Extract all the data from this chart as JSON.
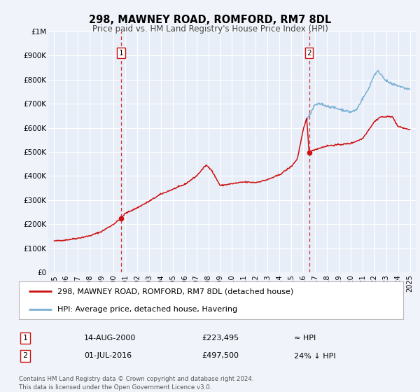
{
  "title": "298, MAWNEY ROAD, ROMFORD, RM7 8DL",
  "subtitle": "Price paid vs. HM Land Registry's House Price Index (HPI)",
  "bg_color": "#f0f4fa",
  "plot_bg_color": "#e8eef8",
  "grid_color": "#ffffff",
  "hpi_color": "#7ab0d4",
  "price_color": "#cc1111",
  "sale1_date_num": 2000.62,
  "sale1_price": 223495,
  "sale2_date_num": 2016.5,
  "sale2_price": 497500,
  "vline_color": "#cc1111",
  "ylim_max": 1000000,
  "ylim_min": 0,
  "xlim_min": 1994.5,
  "xlim_max": 2025.5,
  "ytick_labels": [
    "£0",
    "£100K",
    "£200K",
    "£300K",
    "£400K",
    "£500K",
    "£600K",
    "£700K",
    "£800K",
    "£900K",
    "£1M"
  ],
  "ytick_values": [
    0,
    100000,
    200000,
    300000,
    400000,
    500000,
    600000,
    700000,
    800000,
    900000,
    1000000
  ],
  "xtick_years": [
    1995,
    1996,
    1997,
    1998,
    1999,
    2000,
    2001,
    2002,
    2003,
    2004,
    2005,
    2006,
    2007,
    2008,
    2009,
    2010,
    2011,
    2012,
    2013,
    2014,
    2015,
    2016,
    2017,
    2018,
    2019,
    2020,
    2021,
    2022,
    2023,
    2024,
    2025
  ],
  "legend_label1": "298, MAWNEY ROAD, ROMFORD, RM7 8DL (detached house)",
  "legend_label2": "HPI: Average price, detached house, Havering",
  "table_row1": [
    "1",
    "14-AUG-2000",
    "£223,495",
    "≈ HPI"
  ],
  "table_row2": [
    "2",
    "01-JUL-2016",
    "£497,500",
    "24% ↓ HPI"
  ],
  "footnote": "Contains HM Land Registry data © Crown copyright and database right 2024.\nThis data is licensed under the Open Government Licence v3.0."
}
